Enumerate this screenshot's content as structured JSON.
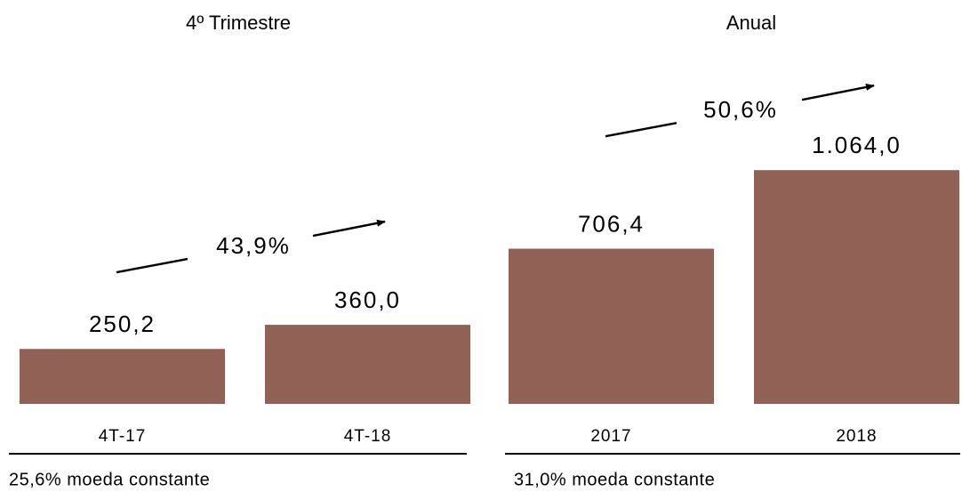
{
  "chart_data": [
    {
      "type": "bar",
      "title": "4º Trimestre",
      "categories": [
        "4T-17",
        "4T-18"
      ],
      "values": [
        250.2,
        360.0
      ],
      "value_labels": [
        "250,2",
        "360,0"
      ],
      "color": "#926155",
      "annotation": "43,9%",
      "footnote": "25,6% moeda constante"
    },
    {
      "type": "bar",
      "title": "Anual",
      "categories": [
        "2017",
        "2018"
      ],
      "values": [
        706.4,
        1064.0
      ],
      "value_labels": [
        "706,4",
        "1.064,0"
      ],
      "color": "#926155",
      "annotation": "50,6%",
      "footnote": "31,0% moeda constante"
    }
  ]
}
